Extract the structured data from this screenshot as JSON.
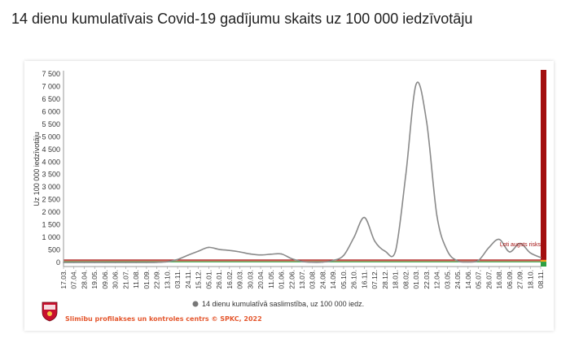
{
  "page_title": "14 dienu kumulatīvais Covid-19 gadījumu skaits uz 100 000 iedzīvotāju",
  "footer": {
    "source": "Slimību profilakses un kontroles centrs © SPKC, 2022",
    "logo": "spkc-coat-of-arms-logo"
  },
  "colors": {
    "series": "#8a8a8a",
    "threshold_high": "#a30f0f",
    "threshold_mid": "#e07a5f",
    "threshold_low": "#2ea043",
    "band_orange": "#f6a31a",
    "footer_text": "#e4572e"
  },
  "chart_data": {
    "type": "line",
    "title": "14 dienu kumulatīvais Covid-19 gadījumu skaits uz 100 000 iedzīvotāju",
    "ylabel": "Uz 100 000 iedzīvotāju",
    "xlabel": "",
    "ylim": [
      0,
      7500
    ],
    "yticks": [
      0,
      500,
      1000,
      1500,
      2000,
      2500,
      3000,
      3500,
      4000,
      4500,
      5000,
      5500,
      6000,
      6500,
      7000,
      7500
    ],
    "ytick_labels": [
      "0",
      "500",
      "1 000",
      "1 500",
      "2 000",
      "2 500",
      "3 000",
      "3 500",
      "4 000",
      "4 500",
      "5 000",
      "5 500",
      "6 000",
      "6 500",
      "7 000",
      "7 500"
    ],
    "categories": [
      "17.03.",
      "07.04.",
      "28.04.",
      "19.05.",
      "09.06.",
      "30.06.",
      "21.07.",
      "11.08.",
      "01.09.",
      "22.09.",
      "13.10.",
      "03.11.",
      "24.11.",
      "15.12.",
      "05.01.",
      "26.01.",
      "16.02.",
      "09.03.",
      "30.03.",
      "20.04.",
      "11.05.",
      "01.06.",
      "22.06.",
      "13.07.",
      "03.08.",
      "24.08.",
      "14.09.",
      "05.10.",
      "26.10.",
      "16.11.",
      "07.12.",
      "28.12.",
      "18.01.",
      "08.02.",
      "01.03.",
      "22.03.",
      "12.04.",
      "03.05.",
      "24.05.",
      "14.06.",
      "05.07.",
      "26.07.",
      "16.08.",
      "06.09.",
      "27.09.",
      "18.10.",
      "08.11."
    ],
    "series": [
      {
        "name": "14 dienu kumulatīvā saslimstība, uz 100 000 iedz.",
        "values": [
          0,
          1,
          2,
          2,
          1,
          1,
          0,
          0,
          1,
          5,
          30,
          120,
          290,
          450,
          600,
          520,
          480,
          420,
          340,
          300,
          330,
          340,
          150,
          40,
          10,
          15,
          80,
          280,
          1000,
          1790,
          850,
          450,
          450,
          3500,
          7100,
          5600,
          1850,
          470,
          60,
          20,
          80,
          590,
          920,
          420,
          760,
          380,
          200
        ]
      }
    ],
    "threshold_lines": [
      {
        "name": "high",
        "value": 100
      },
      {
        "name": "mid",
        "value": 60
      },
      {
        "name": "low",
        "value": 25
      }
    ],
    "annotations": [
      "Ļoti augsts risks"
    ],
    "legend": {
      "position": "bottom",
      "entries": [
        "14 dienu kumulatīvā saslimstība, uz 100 000 iedz."
      ]
    },
    "grid": false
  }
}
